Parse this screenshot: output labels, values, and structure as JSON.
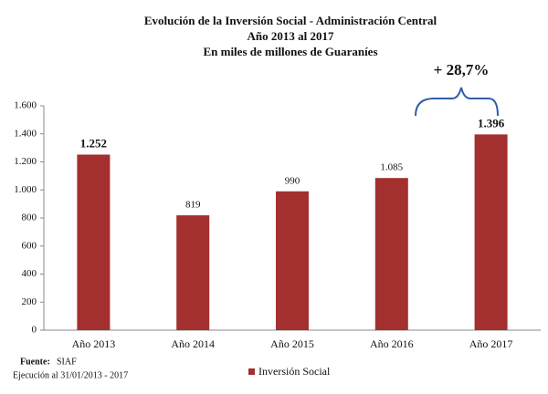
{
  "chart_data": {
    "type": "bar",
    "title": "Evolución de la Inversión Social - Administración Central",
    "subtitle": "Año 2013 al 2017",
    "unit_note": "En miles de millones de Guaraníes",
    "categories": [
      "Año 2013",
      "Año 2014",
      "Año 2015",
      "Año 2016",
      "Año 2017"
    ],
    "series": [
      {
        "name": "Inversión Social",
        "color": "#a3302f",
        "values": [
          1252,
          819,
          990,
          1085,
          1396
        ],
        "value_labels": [
          "1.252",
          "819",
          "990",
          "1.085",
          "1.396"
        ]
      }
    ],
    "ylim": [
      0,
      1600
    ],
    "yticks": [
      0,
      200,
      400,
      600,
      800,
      {
        "value": 1000,
        "label": "1.000"
      },
      {
        "value": 1200,
        "label": "1.200"
      },
      {
        "value": 1400,
        "label": "1.400"
      },
      {
        "value": 1600,
        "label": "1.600"
      }
    ],
    "annotation": "+ 28,7%",
    "source_label": "Fuente:",
    "source": "SIAF",
    "source_note": "Ejecución al 31/01/2013 - 2017",
    "legend": "bottom"
  }
}
